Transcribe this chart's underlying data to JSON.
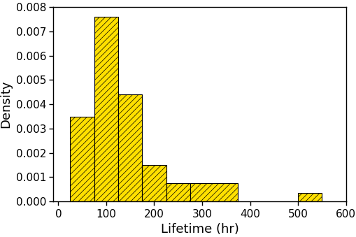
{
  "title": "",
  "xlabel": "Lifetime (hr)",
  "ylabel": "Density",
  "bar_left_edges": [
    25,
    75,
    125,
    175,
    225,
    275,
    325,
    500
  ],
  "bar_widths": [
    50,
    50,
    50,
    50,
    50,
    100,
    50,
    50
  ],
  "bar_heights": [
    0.0035,
    0.0076,
    0.0044,
    0.0015,
    0.00075,
    0.00075,
    0.0,
    0.00035
  ],
  "bar_color": "#FFE000",
  "bar_edgecolor": "#000000",
  "hatch": "////",
  "xlim": [
    -10,
    600
  ],
  "ylim": [
    0,
    0.008
  ],
  "xticks": [
    0,
    100,
    200,
    300,
    400,
    500,
    600
  ],
  "yticks": [
    0.0,
    0.001,
    0.002,
    0.003,
    0.004,
    0.005,
    0.006,
    0.007,
    0.008
  ],
  "background_color": "#FFFFFF",
  "xlabel_fontsize": 13,
  "ylabel_fontsize": 13,
  "tick_fontsize": 11,
  "hatch_linewidth": 0.5
}
